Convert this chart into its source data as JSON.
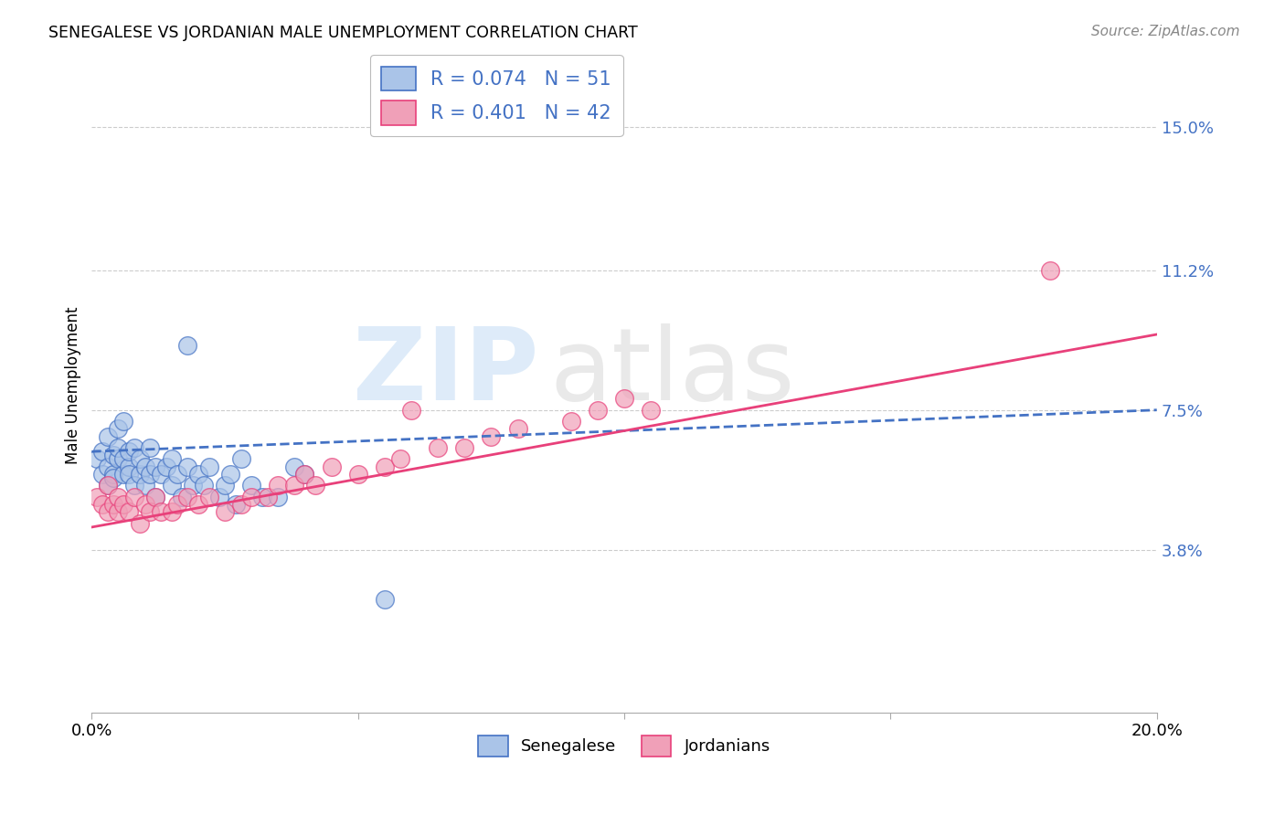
{
  "title": "SENEGALESE VS JORDANIAN MALE UNEMPLOYMENT CORRELATION CHART",
  "source": "Source: ZipAtlas.com",
  "ylabel": "Male Unemployment",
  "xlim": [
    0.0,
    0.2
  ],
  "ylim": [
    -0.005,
    0.168
  ],
  "yticks": [
    0.038,
    0.075,
    0.112,
    0.15
  ],
  "ytick_labels": [
    "3.8%",
    "7.5%",
    "11.2%",
    "15.0%"
  ],
  "xticks": [
    0.0,
    0.05,
    0.1,
    0.15,
    0.2
  ],
  "xtick_labels": [
    "0.0%",
    "",
    "",
    "",
    "20.0%"
  ],
  "senegalese_color": "#aac4e8",
  "jordanian_color": "#f0a0b8",
  "senegalese_line_color": "#4472c4",
  "jordanian_line_color": "#e8407a",
  "background_color": "#ffffff",
  "sen_R": 0.074,
  "jor_R": 0.401,
  "sen_N": 51,
  "jor_N": 42,
  "senegalese_x": [
    0.001,
    0.002,
    0.002,
    0.003,
    0.003,
    0.003,
    0.004,
    0.004,
    0.004,
    0.005,
    0.005,
    0.005,
    0.006,
    0.006,
    0.006,
    0.007,
    0.007,
    0.007,
    0.008,
    0.008,
    0.009,
    0.009,
    0.01,
    0.01,
    0.011,
    0.011,
    0.012,
    0.012,
    0.013,
    0.014,
    0.015,
    0.015,
    0.016,
    0.017,
    0.018,
    0.019,
    0.02,
    0.021,
    0.022,
    0.024,
    0.025,
    0.026,
    0.027,
    0.028,
    0.03,
    0.032,
    0.035,
    0.038,
    0.04,
    0.018,
    0.055
  ],
  "senegalese_y": [
    0.062,
    0.058,
    0.064,
    0.06,
    0.055,
    0.068,
    0.058,
    0.063,
    0.057,
    0.062,
    0.065,
    0.07,
    0.058,
    0.062,
    0.072,
    0.06,
    0.064,
    0.058,
    0.055,
    0.065,
    0.058,
    0.062,
    0.06,
    0.055,
    0.058,
    0.065,
    0.052,
    0.06,
    0.058,
    0.06,
    0.055,
    0.062,
    0.058,
    0.052,
    0.06,
    0.055,
    0.058,
    0.055,
    0.06,
    0.052,
    0.055,
    0.058,
    0.05,
    0.062,
    0.055,
    0.052,
    0.052,
    0.06,
    0.058,
    0.092,
    0.025
  ],
  "jordanian_x": [
    0.001,
    0.002,
    0.003,
    0.003,
    0.004,
    0.005,
    0.005,
    0.006,
    0.007,
    0.008,
    0.009,
    0.01,
    0.011,
    0.012,
    0.013,
    0.015,
    0.016,
    0.018,
    0.02,
    0.022,
    0.025,
    0.028,
    0.03,
    0.033,
    0.035,
    0.038,
    0.04,
    0.042,
    0.045,
    0.05,
    0.055,
    0.058,
    0.065,
    0.07,
    0.075,
    0.08,
    0.09,
    0.095,
    0.1,
    0.105,
    0.18,
    0.06
  ],
  "jordanian_y": [
    0.052,
    0.05,
    0.048,
    0.055,
    0.05,
    0.048,
    0.052,
    0.05,
    0.048,
    0.052,
    0.045,
    0.05,
    0.048,
    0.052,
    0.048,
    0.048,
    0.05,
    0.052,
    0.05,
    0.052,
    0.048,
    0.05,
    0.052,
    0.052,
    0.055,
    0.055,
    0.058,
    0.055,
    0.06,
    0.058,
    0.06,
    0.062,
    0.065,
    0.065,
    0.068,
    0.07,
    0.072,
    0.075,
    0.078,
    0.075,
    0.112,
    0.075
  ]
}
